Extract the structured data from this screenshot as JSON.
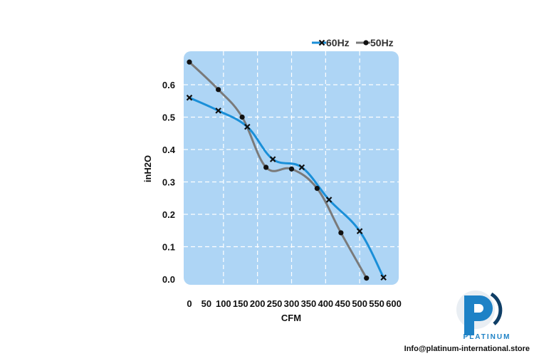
{
  "chart_data": {
    "type": "line",
    "title": "",
    "xlabel": "CFM",
    "ylabel": "inH2O",
    "xlim": [
      0,
      600
    ],
    "ylim": [
      0,
      0.6
    ],
    "xticks": [
      0,
      50,
      100,
      150,
      200,
      250,
      300,
      350,
      400,
      450,
      500,
      550,
      600
    ],
    "yticks": [
      0.0,
      0.1,
      0.2,
      0.3,
      0.4,
      0.5,
      0.6
    ],
    "grid": true,
    "legend_position": "top-right",
    "series": [
      {
        "name": "60Hz",
        "color": "#1a8fd8",
        "marker": "x",
        "x": [
          0,
          85,
          170,
          245,
          330,
          410,
          500,
          570
        ],
        "y": [
          0.56,
          0.52,
          0.47,
          0.37,
          0.345,
          0.245,
          0.148,
          0.005
        ]
      },
      {
        "name": "50Hz",
        "color": "#7a7a7a",
        "marker": "dot",
        "x": [
          0,
          85,
          155,
          225,
          300,
          375,
          445,
          520
        ],
        "y": [
          0.67,
          0.585,
          0.5,
          0.345,
          0.34,
          0.28,
          0.143,
          0.003
        ]
      }
    ]
  },
  "footer": {
    "brand_logo": "PLATINUM",
    "email": "Info@platinum-international.store"
  }
}
